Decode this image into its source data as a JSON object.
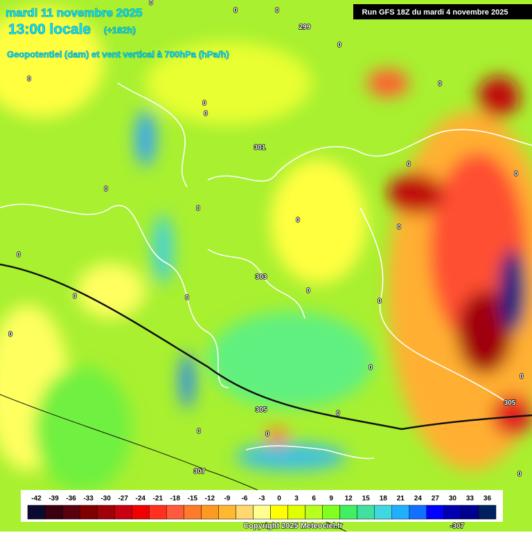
{
  "header": {
    "date": "mardi 11 novembre 2025",
    "time": "13:00 locale",
    "lead": "(+162h)",
    "subtitle": "Geopotentiel (dam) et vent vertical à 700hPa (hPa/h)",
    "run": "Run GFS 18Z du mardi 4 novembre 2025"
  },
  "legend": {
    "labels": [
      "-42",
      "-39",
      "-36",
      "-33",
      "-30",
      "-27",
      "-24",
      "-21",
      "-18",
      "-15",
      "-12",
      "-9",
      "-6",
      "-3",
      "0",
      "3",
      "6",
      "9",
      "12",
      "15",
      "18",
      "21",
      "24",
      "27",
      "30",
      "33",
      "36"
    ],
    "colors": [
      "#0a0a30",
      "#3a0010",
      "#5a0010",
      "#800000",
      "#a00008",
      "#c80010",
      "#f00000",
      "#ff3020",
      "#ff5a3c",
      "#ff7a2a",
      "#ff9a20",
      "#ffb830",
      "#ffd870",
      "#ffff90",
      "#ffff00",
      "#e0ff00",
      "#b8ff20",
      "#80ff20",
      "#40f060",
      "#40e0a0",
      "#40d8e0",
      "#20b0ff",
      "#1070ff",
      "#0000ff",
      "#0000b0",
      "#000090",
      "#002060"
    ]
  },
  "contour_labels": [
    "0",
    "0",
    "0",
    "299",
    "0",
    "0",
    "0",
    "0",
    "0",
    "301",
    "0",
    "0",
    "0",
    "0",
    "0",
    "0",
    "0",
    "303",
    "0",
    "0",
    "0",
    "0",
    "0",
    "0",
    "0",
    "305",
    "0",
    "305",
    "0",
    "0",
    "307",
    "0",
    "-307"
  ],
  "copyright": "Copyright 2025 Meteociel.fr"
}
